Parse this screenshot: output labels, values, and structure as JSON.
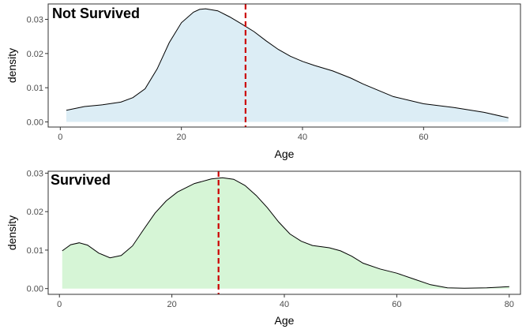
{
  "chart_data": [
    {
      "type": "area",
      "title": "Not Survived",
      "xlabel": "Age",
      "ylabel": "density",
      "xlim": [
        -2,
        76
      ],
      "ylim": [
        -0.0015,
        0.0345
      ],
      "xticks": [
        "0",
        "20",
        "40",
        "60"
      ],
      "xtick_values": [
        0,
        20,
        40,
        60
      ],
      "yticks": [
        "0.00",
        "0.01",
        "0.02",
        "0.03"
      ],
      "ytick_values": [
        0,
        0.01,
        0.02,
        0.03
      ],
      "fill_color": "#dcedf5",
      "line_color": "#000000",
      "mean_line_color": "#cc0000",
      "mean_line_x": 30.6,
      "grid": false,
      "x": [
        1,
        4,
        7,
        10,
        12,
        14,
        16,
        18,
        20,
        22,
        23,
        24,
        26,
        28,
        30,
        32,
        34,
        36,
        38,
        40,
        42,
        45,
        48,
        50,
        55,
        60,
        65,
        70,
        74
      ],
      "y": [
        0.0034,
        0.0045,
        0.005,
        0.0058,
        0.0071,
        0.0097,
        0.0155,
        0.0232,
        0.029,
        0.0321,
        0.0329,
        0.0331,
        0.0325,
        0.0307,
        0.0286,
        0.0264,
        0.0237,
        0.0212,
        0.0192,
        0.0177,
        0.0165,
        0.0149,
        0.0128,
        0.0111,
        0.0074,
        0.0053,
        0.0042,
        0.0028,
        0.0012
      ]
    },
    {
      "type": "area",
      "title": "Survived",
      "xlabel": "Age",
      "ylabel": "density",
      "xlim": [
        -2,
        82
      ],
      "ylim": [
        -0.0015,
        0.0305
      ],
      "xticks": [
        "0",
        "20",
        "40",
        "60",
        "80"
      ],
      "xtick_values": [
        0,
        20,
        40,
        60,
        80
      ],
      "yticks": [
        "0.00",
        "0.01",
        "0.02",
        "0.03"
      ],
      "ytick_values": [
        0,
        0.01,
        0.02,
        0.03
      ],
      "fill_color": "#d6f5d6",
      "line_color": "#000000",
      "mean_line_color": "#cc0000",
      "mean_line_x": 28.3,
      "grid": false,
      "x": [
        0.5,
        2,
        3.5,
        5,
        7,
        9,
        11,
        13,
        15,
        17,
        19,
        21,
        24,
        27,
        29,
        31,
        33,
        35,
        37,
        39,
        41,
        43,
        45,
        48,
        50,
        52,
        54,
        57,
        60,
        63,
        66,
        69,
        72,
        76,
        80
      ],
      "y": [
        0.0098,
        0.0114,
        0.0119,
        0.0113,
        0.0092,
        0.008,
        0.0086,
        0.0111,
        0.0154,
        0.0196,
        0.0228,
        0.0251,
        0.0273,
        0.0285,
        0.0288,
        0.0284,
        0.0268,
        0.0242,
        0.021,
        0.0173,
        0.0142,
        0.0123,
        0.0112,
        0.0106,
        0.0098,
        0.0084,
        0.0066,
        0.0051,
        0.004,
        0.0025,
        0.001,
        0.0002,
        0.0001,
        0.0002,
        0.0005
      ]
    }
  ]
}
